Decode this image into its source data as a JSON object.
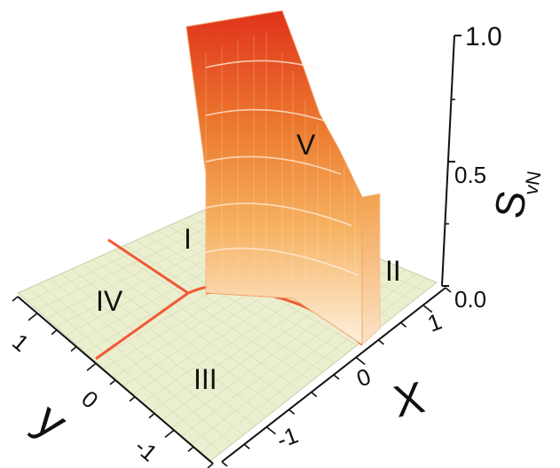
{
  "chart_data": {
    "type": "surface3d",
    "title": "",
    "axes": {
      "x": {
        "label": "X",
        "ticks": [
          "-1",
          "0",
          "1"
        ]
      },
      "y": {
        "label": "y",
        "ticks": [
          "-1",
          "0",
          "1"
        ]
      },
      "z": {
        "label": "S",
        "label_sub": "vN",
        "ticks": [
          "0.0",
          "0.5",
          "1.0"
        ],
        "range": [
          0,
          1
        ]
      }
    },
    "regions": [
      {
        "label": "I"
      },
      {
        "label": "II"
      },
      {
        "label": "III"
      },
      {
        "label": "IV"
      },
      {
        "label": "V"
      }
    ],
    "surface_profile": {
      "description_x": [
        -0.9,
        -0.5,
        -0.2,
        0.1,
        0.4,
        0.7,
        1.0
      ],
      "front_edge_SvN": [
        0.0,
        0.78,
        0.78,
        0.72,
        0.55,
        0.38,
        0.0
      ],
      "back_edge_SvN": [
        1.0,
        1.0,
        1.0,
        0.98,
        0.88,
        0.62,
        0.42
      ]
    },
    "colors": {
      "floor": "#ecefcf",
      "grid": "#dadfb8",
      "boundary": "#f0603a",
      "surface_top": "#e23a1e",
      "surface_bottom": "#fdf0dc"
    }
  }
}
